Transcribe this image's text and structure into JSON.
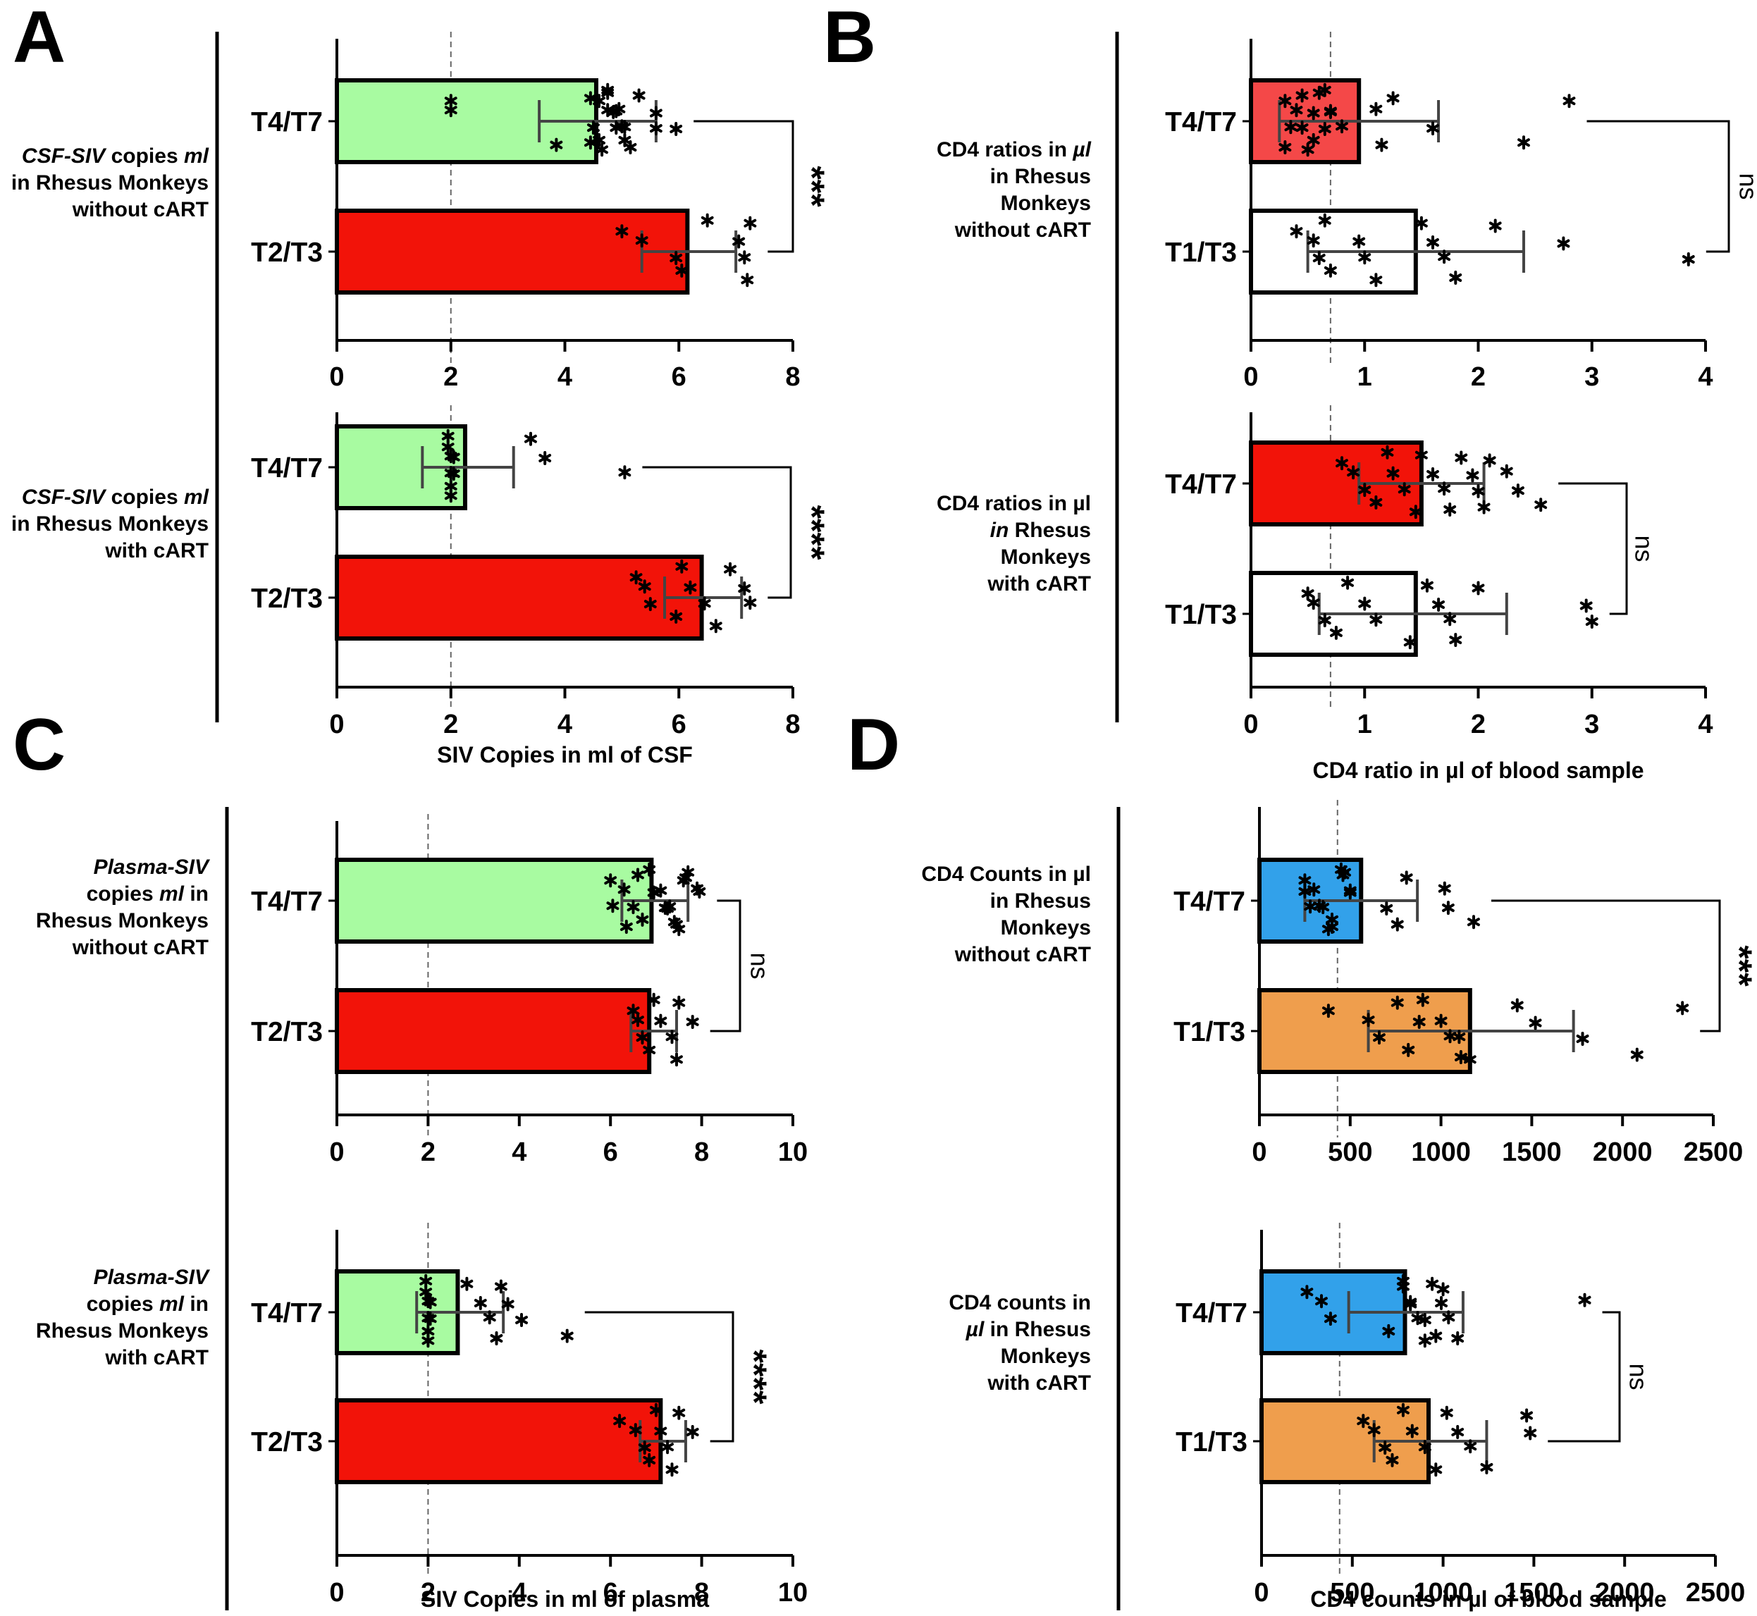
{
  "panels": [
    {
      "letter": "A"
    },
    {
      "letter": "B"
    },
    {
      "letter": "C"
    },
    {
      "letter": "D"
    }
  ],
  "chart_data": [
    {
      "id": "A1",
      "panel": "A",
      "type": "bar",
      "orientation": "horizontal",
      "ylabel_lines": [
        [
          "CSF-SIV",
          " copies ",
          "ml"
        ],
        [
          "in Rhesus Monkeys"
        ],
        [
          "without cART"
        ]
      ],
      "xlim": [
        0,
        8
      ],
      "xticks": [
        0,
        2,
        4,
        6,
        8
      ],
      "show_xaxis": true,
      "xlabel": "",
      "reference_line": 2,
      "categories": [
        "T4/T7",
        "T2/T3"
      ],
      "bar_colors": [
        "#a8fba1",
        "#f21309"
      ],
      "values": [
        4.55,
        6.15
      ],
      "error_low": [
        3.55,
        5.35
      ],
      "error_high": [
        5.6,
        7.0
      ],
      "points": [
        [
          2.0,
          2.0,
          4.5,
          4.6,
          4.75,
          4.9,
          5.05,
          4.65,
          4.75,
          4.85,
          5.0,
          5.15,
          5.3,
          5.6,
          5.95,
          3.85,
          4.45,
          4.95,
          5.6,
          4.45,
          4.6,
          4.75,
          4.9,
          5.05
        ],
        [
          5.0,
          5.35,
          5.95,
          6.05,
          6.5,
          7.05,
          7.15,
          7.2,
          7.25
        ]
      ],
      "significance": "***"
    },
    {
      "id": "A2",
      "panel": "A",
      "type": "bar",
      "orientation": "horizontal",
      "ylabel_lines": [
        [
          "CSF-SIV",
          " copies ",
          "ml"
        ],
        [
          "in Rhesus Monkeys"
        ],
        [
          "with cART"
        ]
      ],
      "xlim": [
        0,
        8
      ],
      "xticks": [
        0,
        2,
        4,
        6,
        8
      ],
      "show_xaxis": true,
      "xlabel": "SIV Copies in ml of CSF",
      "reference_line": 2,
      "categories": [
        "T4/T7",
        "T2/T3"
      ],
      "bar_colors": [
        "#a8fba1",
        "#f21309"
      ],
      "values": [
        2.25,
        6.4
      ],
      "error_low": [
        1.5,
        5.75
      ],
      "error_high": [
        3.1,
        7.1
      ],
      "points": [
        [
          1.95,
          2.0,
          2.05,
          2.0,
          1.95,
          2.05,
          2.0,
          2.0,
          3.4,
          3.65,
          5.05
        ],
        [
          5.25,
          5.4,
          5.5,
          5.95,
          6.05,
          6.2,
          6.45,
          6.65,
          6.9,
          7.15,
          7.25
        ]
      ],
      "significance": "****"
    },
    {
      "id": "B1",
      "panel": "B",
      "type": "bar",
      "orientation": "horizontal",
      "ylabel_lines": [
        [
          "CD4 ratios in ",
          "µl"
        ],
        [
          "in Rhesus"
        ],
        [
          "Monkeys"
        ],
        [
          "without cART"
        ]
      ],
      "xlim": [
        0,
        4
      ],
      "xticks": [
        0,
        1,
        2,
        3,
        4
      ],
      "show_xaxis": true,
      "xlabel": "",
      "reference_line": 0.7,
      "categories": [
        "T4/T7",
        "T1/T3"
      ],
      "bar_colors": [
        "#f44848",
        "#ffffff"
      ],
      "values": [
        0.95,
        1.45
      ],
      "error_low": [
        0.25,
        0.5
      ],
      "error_high": [
        1.65,
        2.4
      ],
      "points": [
        [
          0.3,
          0.4,
          0.45,
          0.55,
          0.65,
          0.7,
          0.35,
          0.5,
          0.6,
          0.7,
          0.8,
          0.3,
          0.45,
          0.55,
          0.65,
          1.15,
          1.25,
          1.1,
          1.6,
          2.4,
          2.8
        ],
        [
          0.4,
          0.55,
          0.6,
          0.7,
          0.65,
          0.95,
          1.0,
          1.1,
          1.5,
          1.6,
          1.7,
          1.8,
          2.15,
          2.75,
          3.85
        ]
      ],
      "significance": "ns"
    },
    {
      "id": "B2",
      "panel": "B",
      "type": "bar",
      "orientation": "horizontal",
      "ylabel_lines": [
        [
          "CD4 ratios in µl"
        ],
        [
          "in",
          " Rhesus"
        ],
        [
          "Monkeys"
        ],
        [
          "with cART"
        ]
      ],
      "xlim": [
        0,
        4
      ],
      "xticks": [
        0,
        1,
        2,
        3,
        4
      ],
      "show_xaxis": true,
      "xlabel": "CD4 ratio in µl of blood sample",
      "reference_line": 0.7,
      "categories": [
        "T4/T7",
        "T1/T3"
      ],
      "bar_colors": [
        "#f21309",
        "#ffffff"
      ],
      "values": [
        1.5,
        1.45
      ],
      "error_low": [
        0.95,
        0.6
      ],
      "error_high": [
        2.05,
        2.25
      ],
      "points": [
        [
          0.8,
          0.9,
          1.0,
          1.1,
          1.2,
          1.25,
          1.35,
          1.45,
          1.5,
          1.6,
          1.7,
          1.75,
          1.85,
          1.95,
          2.0,
          2.05,
          2.1,
          2.25,
          2.35,
          2.55
        ],
        [
          0.5,
          0.55,
          0.65,
          0.75,
          0.85,
          1.0,
          1.1,
          1.4,
          1.55,
          1.65,
          1.75,
          1.8,
          2.0,
          2.95,
          3.0
        ]
      ],
      "significance": "ns"
    },
    {
      "id": "C1",
      "panel": "C",
      "type": "bar",
      "orientation": "horizontal",
      "ylabel_lines": [
        [
          "Plasma-SIV"
        ],
        [
          "copies ",
          "ml",
          "  in"
        ],
        [
          "Rhesus Monkeys"
        ],
        [
          "without cART"
        ]
      ],
      "xlim": [
        0,
        10
      ],
      "xticks": [
        0,
        2,
        4,
        6,
        8,
        10
      ],
      "show_xaxis": true,
      "xlabel": "",
      "reference_line": 2,
      "categories": [
        "T4/T7",
        "T2/T3"
      ],
      "bar_colors": [
        "#a8fba1",
        "#f21309"
      ],
      "values": [
        6.9,
        6.85
      ],
      "error_low": [
        6.25,
        6.45
      ],
      "error_high": [
        7.7,
        7.45
      ],
      "points": [
        [
          6.0,
          6.3,
          6.5,
          6.7,
          6.85,
          7.1,
          7.3,
          7.5,
          7.7,
          7.95,
          6.05,
          6.35,
          6.6,
          6.95,
          7.25,
          7.45,
          7.65,
          7.9,
          7.2,
          7.4,
          7.6
        ],
        [
          6.5,
          6.6,
          6.7,
          6.85,
          6.95,
          7.1,
          7.35,
          7.45,
          7.5,
          7.8
        ]
      ],
      "significance": "ns"
    },
    {
      "id": "C2",
      "panel": "C",
      "type": "bar",
      "orientation": "horizontal",
      "ylabel_lines": [
        [
          "Plasma-SIV"
        ],
        [
          "copies ",
          "ml",
          "  in"
        ],
        [
          "Rhesus Monkeys"
        ],
        [
          "with cART"
        ]
      ],
      "xlim": [
        0,
        10
      ],
      "xticks": [
        0,
        2,
        4,
        6,
        8,
        10
      ],
      "show_xaxis": true,
      "xlabel": "SIV Copies in ml of plasma",
      "reference_line": 2,
      "categories": [
        "T4/T7",
        "T2/T3"
      ],
      "bar_colors": [
        "#a8fba1",
        "#f21309"
      ],
      "values": [
        2.65,
        7.1
      ],
      "error_low": [
        1.75,
        6.65
      ],
      "error_high": [
        3.65,
        7.65
      ],
      "points": [
        [
          1.95,
          2.0,
          2.05,
          2.0,
          1.95,
          2.05,
          2.0,
          2.0,
          2.85,
          3.15,
          3.35,
          3.5,
          3.6,
          3.75,
          4.05,
          5.05
        ],
        [
          6.2,
          6.55,
          6.75,
          6.85,
          7.0,
          7.1,
          7.25,
          7.35,
          7.5,
          7.8
        ]
      ],
      "significance": "****"
    },
    {
      "id": "D1",
      "panel": "D",
      "type": "bar",
      "orientation": "horizontal",
      "ylabel_lines": [
        [
          "CD4 Counts in µl"
        ],
        [
          "in Rhesus"
        ],
        [
          "Monkeys"
        ],
        [
          "without cART"
        ]
      ],
      "xlim": [
        0,
        2500
      ],
      "xticks": [
        0,
        500,
        1000,
        1500,
        2000,
        2500
      ],
      "show_xaxis": true,
      "xlabel": "",
      "reference_line": 430,
      "categories": [
        "T4/T7",
        "T1/T3"
      ],
      "bar_colors": [
        "#32a1ea",
        "#ef9e4d"
      ],
      "values": [
        560,
        1160
      ],
      "error_low": [
        250,
        600
      ],
      "error_high": [
        870,
        1730
      ],
      "points": [
        [
          250,
          300,
          350,
          400,
          450,
          500,
          280,
          380,
          470,
          250,
          330,
          400,
          460,
          500,
          700,
          760,
          810,
          1020,
          1040,
          1180
        ],
        [
          380,
          600,
          660,
          820,
          900,
          1000,
          1100,
          1160,
          760,
          880,
          1050,
          1110,
          1420,
          1520,
          1780,
          2080,
          2330
        ]
      ],
      "significance": "***"
    },
    {
      "id": "D2",
      "panel": "D",
      "type": "bar",
      "orientation": "horizontal",
      "ylabel_lines": [
        [
          "CD4 counts in"
        ],
        [
          "µl",
          "  in Rhesus"
        ],
        [
          "Monkeys"
        ],
        [
          "with cART"
        ]
      ],
      "xlim": [
        0,
        2500
      ],
      "xticks": [
        0,
        500,
        1000,
        1500,
        2000,
        2500
      ],
      "show_xaxis": true,
      "xlabel": "CD4 counts in µl of blood sample",
      "reference_line": 430,
      "categories": [
        "T4/T7",
        "T1/T3"
      ],
      "bar_colors": [
        "#32a1ea",
        "#ef9e4d"
      ],
      "values": [
        790,
        920
      ],
      "error_low": [
        480,
        620
      ],
      "error_high": [
        1110,
        1240
      ],
      "points": [
        [
          250,
          330,
          380,
          700,
          780,
          820,
          860,
          900,
          940,
          990,
          1030,
          1080,
          780,
          820,
          900,
          960,
          1000,
          1780
        ],
        [
          560,
          620,
          680,
          720,
          780,
          830,
          900,
          960,
          1020,
          1080,
          1150,
          1240,
          1460,
          1480
        ]
      ],
      "significance": "ns"
    }
  ]
}
